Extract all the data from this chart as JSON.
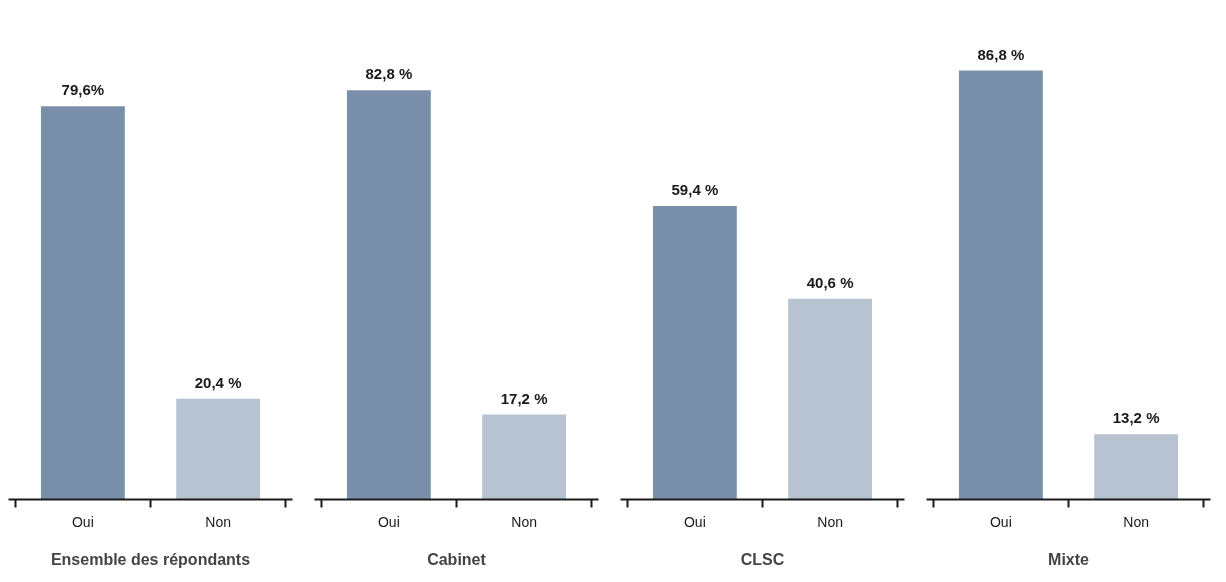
{
  "chart_data": [
    {
      "type": "bar",
      "xlabel": "Ensemble des répondants",
      "categories": [
        "Oui",
        "Non"
      ],
      "values": [
        79.6,
        20.4
      ],
      "colors": [
        "#7a90aa",
        "#b8c3d1"
      ],
      "value_labels": [
        "79,6%",
        "20,4 %"
      ],
      "tick_labels": "x"
    },
    {
      "type": "bar",
      "xlabel": "Cabinet",
      "categories": [
        "Oui",
        "Non"
      ],
      "values": [
        82.8,
        17.2
      ],
      "colors": [
        "#7a90aa",
        "#b8c3d1"
      ],
      "value_labels": [
        "82,8 %",
        "17,2 %"
      ],
      "tick_labels": "x"
    },
    {
      "type": "bar",
      "xlabel": "CLSC",
      "categories": [
        "Oui",
        "Non"
      ],
      "values": [
        59.4,
        40.6
      ],
      "colors": [
        "#7a90aa",
        "#b8c3d1"
      ],
      "value_labels": [
        "59,4 %",
        "40,6 %"
      ],
      "tick_labels": "x"
    },
    {
      "type": "bar",
      "xlabel": "Mixte",
      "categories": [
        "Oui",
        "Non"
      ],
      "values": [
        86.8,
        13.2
      ],
      "colors": [
        "#7a90aa",
        "#b8c3d1"
      ],
      "value_labels": [
        "86,8 %",
        "13,2 %"
      ],
      "tick_labels": "x"
    }
  ]
}
